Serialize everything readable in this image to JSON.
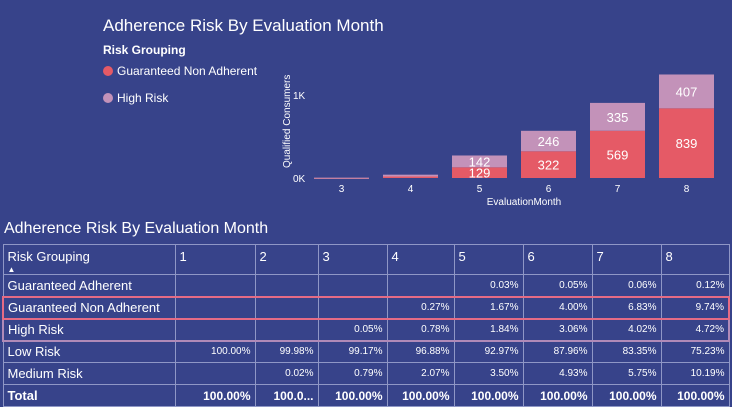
{
  "chart": {
    "title": "Adherence Risk By Evaluation Month",
    "legend_title": "Risk Grouping",
    "legend": [
      {
        "label": "Guaranteed Non Adherent",
        "color": "#e55a66"
      },
      {
        "label": "High Risk",
        "color": "#c392b9"
      }
    ]
  },
  "chart_data": {
    "type": "bar",
    "stacked": true,
    "categories": [
      "3",
      "4",
      "5",
      "6",
      "7",
      "8"
    ],
    "series": [
      {
        "name": "Guaranteed Non Adherent",
        "color": "#e55a66",
        "values": [
          1,
          18,
          129,
          322,
          569,
          839
        ]
      },
      {
        "name": "High Risk",
        "color": "#c392b9",
        "values": [
          3,
          22,
          142,
          246,
          335,
          407
        ]
      }
    ],
    "data_labels": [
      [
        "",
        "",
        "129",
        "322",
        "569",
        "839"
      ],
      [
        "",
        "",
        "142",
        "246",
        "335",
        "407"
      ]
    ],
    "xlabel": "EvaluationMonth",
    "ylabel": "Qualified Consumers",
    "y_ticks": [
      "0K",
      "1K"
    ],
    "ylim": [
      0,
      1300
    ]
  },
  "table": {
    "title": "Adherence Risk By Evaluation Month",
    "header_label": "Risk Grouping",
    "sort_icon": "sort-up-icon",
    "columns": [
      "1",
      "2",
      "3",
      "4",
      "5",
      "6",
      "7",
      "8"
    ],
    "rows": [
      {
        "label": "Guaranteed Adherent",
        "cells": [
          "",
          "",
          "",
          "",
          "0.03%",
          "0.05%",
          "0.06%",
          "0.12%"
        ]
      },
      {
        "label": "Guaranteed Non Adherent",
        "cells": [
          "",
          "",
          "",
          "0.27%",
          "1.67%",
          "4.00%",
          "6.83%",
          "9.74%"
        ]
      },
      {
        "label": "High Risk",
        "cells": [
          "",
          "",
          "0.05%",
          "0.78%",
          "1.84%",
          "3.06%",
          "4.02%",
          "4.72%"
        ]
      },
      {
        "label": "Low Risk",
        "cells": [
          "100.00%",
          "99.98%",
          "99.17%",
          "96.88%",
          "92.97%",
          "87.96%",
          "83.35%",
          "75.23%"
        ]
      },
      {
        "label": "Medium Risk",
        "cells": [
          "",
          "0.02%",
          "0.79%",
          "2.07%",
          "3.50%",
          "4.93%",
          "5.75%",
          "10.19%"
        ]
      }
    ],
    "total": {
      "label": "Total",
      "cells": [
        "100.00%",
        "100.0...",
        "100.00%",
        "100.00%",
        "100.00%",
        "100.00%",
        "100.00%",
        "100.00%"
      ]
    }
  }
}
